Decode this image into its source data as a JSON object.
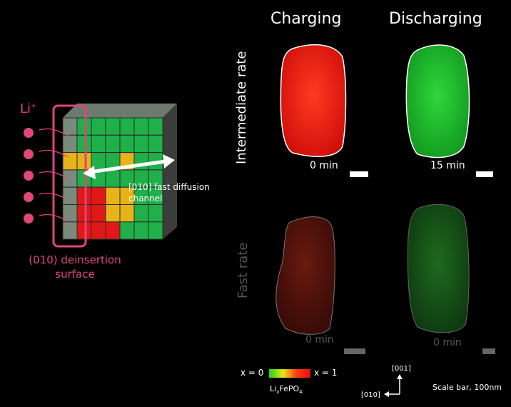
{
  "columns": {
    "charging": "Charging",
    "discharging": "Discharging"
  },
  "rows": {
    "intermediate": "Intermediate rate",
    "fast": "Fast rate"
  },
  "times": {
    "charging_intermediate": "0 min",
    "discharging_intermediate": "15 min",
    "charging_fast": "0 min",
    "discharging_fast": "0 min"
  },
  "schematic": {
    "ion_label_main": "Li",
    "ion_label_sup": "+",
    "channel_label": "[010] fast diffusion\nchannel",
    "surface_label": "(010) deinsertion\nsurface"
  },
  "colorbar": {
    "left_label": "x = 0",
    "right_label": "x = 1",
    "formula_prefix": "Li",
    "formula_sub_x": "x",
    "formula_mid": "FePO",
    "formula_sub_4": "4"
  },
  "axes": {
    "up": "[001]",
    "left": "[010]"
  },
  "scale_bar_text": "Scale bar, 100nm",
  "colors": {
    "accent_pink": "#e0457b",
    "charging_red": "#ff2a1a",
    "discharging_green": "#22cc33",
    "block_green": "#1fb04a",
    "block_yellow": "#e6b418",
    "block_red": "#e01818"
  }
}
